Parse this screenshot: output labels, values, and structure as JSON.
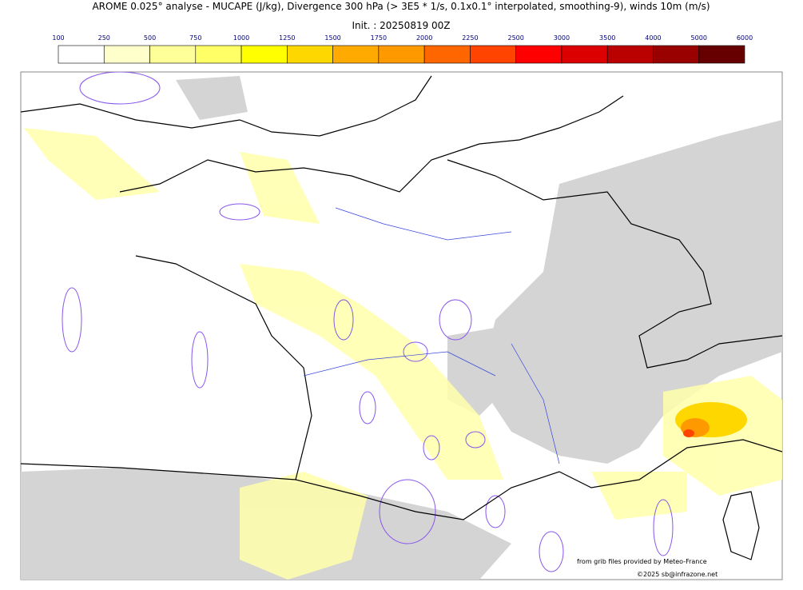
{
  "header": {
    "title": "AROME 0.025° analyse - MUCAPE (J/kg), Divergence 300 hPa (> 3E5 * 1/s, 0.1x0.1° interpolated, smoothing-9), winds 10m (m/s)",
    "init": "Init. : 20250819 00Z"
  },
  "colorbar": {
    "ticks": [
      100,
      250,
      500,
      750,
      1000,
      1250,
      1500,
      1750,
      2000,
      2250,
      2500,
      3000,
      3500,
      4000,
      5000,
      6000
    ],
    "colors": [
      "#ffffff",
      "#ffffcc",
      "#ffff99",
      "#ffff66",
      "#ffff00",
      "#ffd700",
      "#ffaa00",
      "#ff9900",
      "#ff6600",
      "#ff4400",
      "#ff0000",
      "#dd0000",
      "#bb0000",
      "#990000",
      "#660000"
    ]
  },
  "credits": {
    "source": "from grib files provided by Meteo-France",
    "copyright": "©2025 sb@infrazone.net"
  }
}
